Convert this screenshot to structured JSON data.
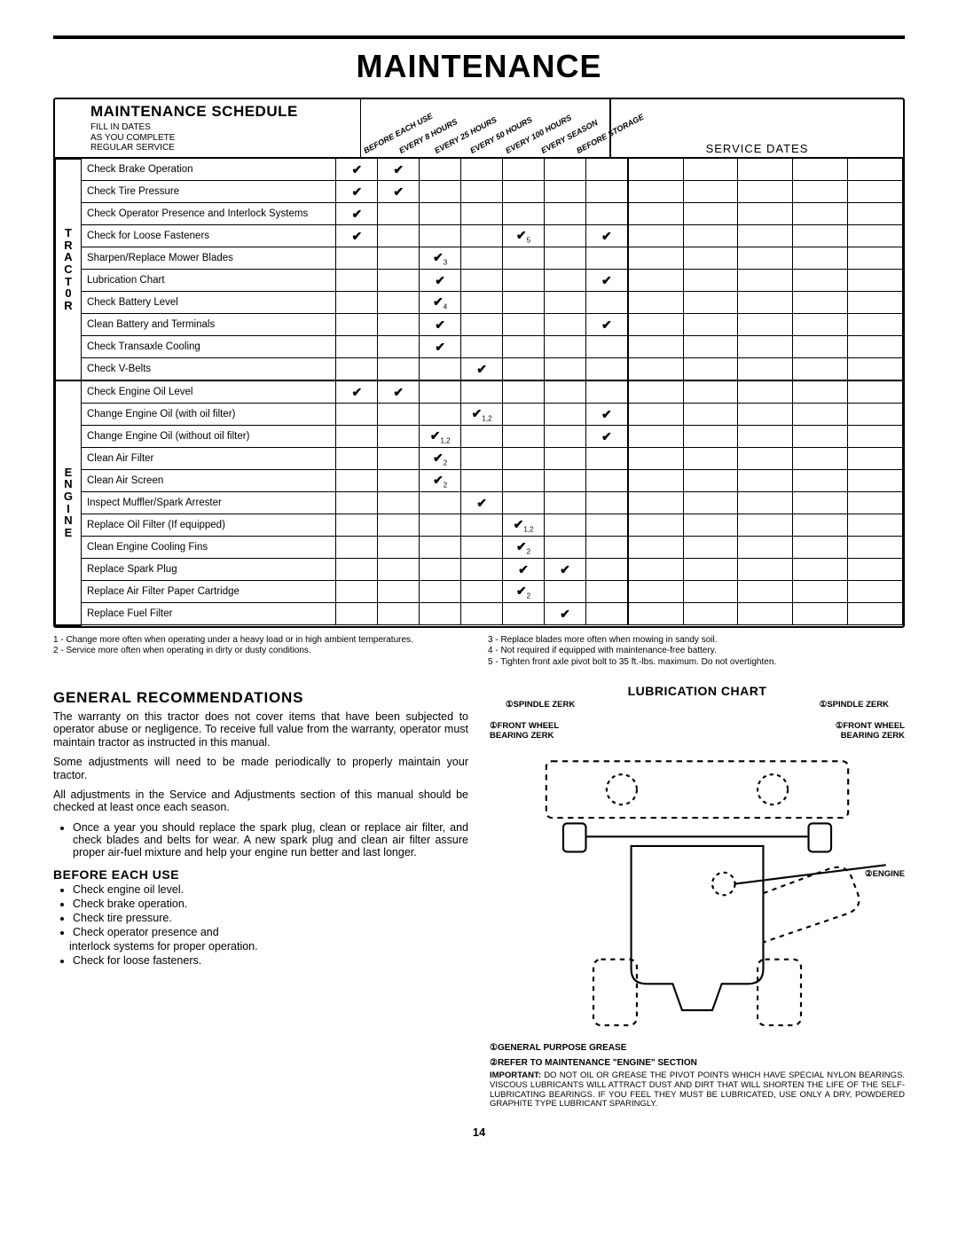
{
  "page_title": "MAINTENANCE",
  "page_number": "14",
  "schedule": {
    "title": "MAINTENANCE SCHEDULE",
    "subtitle_lines": [
      "FILL IN DATES",
      "AS YOU COMPLETE",
      "REGULAR SERVICE"
    ],
    "interval_headers": [
      "BEFORE EACH USE",
      "EVERY 8 HOURS",
      "EVERY 25 HOURS",
      "EVERY 50 HOURS",
      "EVERY 100 HOURS",
      "EVERY SEASON",
      "BEFORE STORAGE"
    ],
    "service_dates_header": "SERVICE DATES",
    "categories": [
      {
        "label": "T\nR\nA\nC\nT\n0\nR",
        "rows": [
          {
            "task": "Check Brake Operation",
            "marks": [
              "✔",
              "✔",
              "",
              "",
              "",
              "",
              ""
            ],
            "sub": [
              "",
              "",
              "",
              "",
              "",
              "",
              ""
            ]
          },
          {
            "task": "Check Tire Pressure",
            "marks": [
              "✔",
              "✔",
              "",
              "",
              "",
              "",
              ""
            ],
            "sub": [
              "",
              "",
              "",
              "",
              "",
              "",
              ""
            ]
          },
          {
            "task": "Check Operator Presence and Interlock Systems",
            "marks": [
              "✔",
              "",
              "",
              "",
              "",
              "",
              ""
            ],
            "sub": [
              "",
              "",
              "",
              "",
              "",
              "",
              ""
            ]
          },
          {
            "task": "Check for Loose Fasteners",
            "marks": [
              "✔",
              "",
              "",
              "",
              "✔",
              "",
              "✔"
            ],
            "sub": [
              "",
              "",
              "",
              "",
              "5",
              "",
              ""
            ]
          },
          {
            "task": "Sharpen/Replace Mower Blades",
            "marks": [
              "",
              "",
              "✔",
              "",
              "",
              "",
              ""
            ],
            "sub": [
              "",
              "",
              "3",
              "",
              "",
              "",
              ""
            ]
          },
          {
            "task": "Lubrication Chart",
            "marks": [
              "",
              "",
              "✔",
              "",
              "",
              "",
              "✔"
            ],
            "sub": [
              "",
              "",
              "",
              "",
              "",
              "",
              ""
            ]
          },
          {
            "task": "Check Battery Level",
            "marks": [
              "",
              "",
              "✔",
              "",
              "",
              "",
              ""
            ],
            "sub": [
              "",
              "",
              "4",
              "",
              "",
              "",
              ""
            ]
          },
          {
            "task": "Clean Battery and Terminals",
            "marks": [
              "",
              "",
              "✔",
              "",
              "",
              "",
              "✔"
            ],
            "sub": [
              "",
              "",
              "",
              "",
              "",
              "",
              ""
            ]
          },
          {
            "task": "Check Transaxle Cooling",
            "marks": [
              "",
              "",
              "✔",
              "",
              "",
              "",
              ""
            ],
            "sub": [
              "",
              "",
              "",
              "",
              "",
              "",
              ""
            ]
          },
          {
            "task": "Check V-Belts",
            "marks": [
              "",
              "",
              "",
              "✔",
              "",
              "",
              ""
            ],
            "sub": [
              "",
              "",
              "",
              "",
              "",
              "",
              ""
            ]
          }
        ]
      },
      {
        "label": "E\nN\nG\nI\nN\nE",
        "rows": [
          {
            "task": "Check Engine Oil Level",
            "marks": [
              "✔",
              "✔",
              "",
              "",
              "",
              "",
              ""
            ],
            "sub": [
              "",
              "",
              "",
              "",
              "",
              "",
              ""
            ]
          },
          {
            "task": "Change Engine Oil (with oil filter)",
            "marks": [
              "",
              "",
              "",
              "✔",
              "",
              "",
              "✔"
            ],
            "sub": [
              "",
              "",
              "",
              "1,2",
              "",
              "",
              ""
            ]
          },
          {
            "task": "Change Engine Oil (without oil filter)",
            "marks": [
              "",
              "",
              "✔",
              "",
              "",
              "",
              "✔"
            ],
            "sub": [
              "",
              "",
              "1,2",
              "",
              "",
              "",
              ""
            ]
          },
          {
            "task": "Clean Air Filter",
            "marks": [
              "",
              "",
              "✔",
              "",
              "",
              "",
              ""
            ],
            "sub": [
              "",
              "",
              "2",
              "",
              "",
              "",
              ""
            ]
          },
          {
            "task": "Clean Air Screen",
            "marks": [
              "",
              "",
              "✔",
              "",
              "",
              "",
              ""
            ],
            "sub": [
              "",
              "",
              "2",
              "",
              "",
              "",
              ""
            ]
          },
          {
            "task": "Inspect Muffler/Spark Arrester",
            "marks": [
              "",
              "",
              "",
              "✔",
              "",
              "",
              ""
            ],
            "sub": [
              "",
              "",
              "",
              "",
              "",
              "",
              ""
            ]
          },
          {
            "task": "Replace Oil Filter (If equipped)",
            "marks": [
              "",
              "",
              "",
              "",
              "✔",
              "",
              ""
            ],
            "sub": [
              "",
              "",
              "",
              "",
              "1,2",
              "",
              ""
            ]
          },
          {
            "task": "Clean Engine Cooling Fins",
            "marks": [
              "",
              "",
              "",
              "",
              "✔",
              "",
              ""
            ],
            "sub": [
              "",
              "",
              "",
              "",
              "2",
              "",
              ""
            ]
          },
          {
            "task": "Replace Spark Plug",
            "marks": [
              "",
              "",
              "",
              "",
              "✔",
              "✔",
              ""
            ],
            "sub": [
              "",
              "",
              "",
              "",
              "",
              "",
              ""
            ]
          },
          {
            "task": "Replace Air Filter Paper Cartridge",
            "marks": [
              "",
              "",
              "",
              "",
              "✔",
              "",
              ""
            ],
            "sub": [
              "",
              "",
              "",
              "",
              "2",
              "",
              ""
            ]
          },
          {
            "task": "Replace Fuel Filter",
            "marks": [
              "",
              "",
              "",
              "",
              "",
              "✔",
              ""
            ],
            "sub": [
              "",
              "",
              "",
              "",
              "",
              "",
              ""
            ]
          }
        ]
      }
    ]
  },
  "footnotes_left": "1 - Change more often when operating under a heavy load or in high ambient temperatures.\n2 - Service more often when operating in dirty or dusty conditions.",
  "footnotes_right": "3 - Replace blades more often when mowing in sandy soil.\n4 - Not required if equipped with maintenance-free battery.\n5 - Tighten front axle pivot bolt to 35 ft.-lbs. maximum. Do not overtighten.",
  "general": {
    "heading": "GENERAL RECOMMENDATIONS",
    "p1": "The warranty on this tractor does not cover items that have been subjected to operator abuse or negligence. To receive full value from the warranty, operator must maintain tractor as instructed in this manual.",
    "p2": "Some adjustments will need to be made periodically to properly maintain your tractor.",
    "p3": "All adjustments in the Service and Adjustments section of this manual should be checked at least once each season.",
    "bullet1": "Once a year you should replace the spark plug, clean or replace air filter, and check blades and belts for wear. A new spark plug and clean air filter assure proper air-fuel mixture and help your engine run better and last longer."
  },
  "before": {
    "heading": "BEFORE EACH USE",
    "items": [
      "Check engine oil level.",
      "Check brake operation.",
      "Check tire pressure.",
      "Check operator presence and",
      "interlock systems for proper operation.",
      "Check for loose fasteners."
    ]
  },
  "lub": {
    "heading": "LUBRICATION CHART",
    "labels": {
      "spindle_l": "①SPINDLE ZERK",
      "spindle_r": "①SPINDLE ZERK",
      "wheel_l": "①FRONT WHEEL BEARING ZERK",
      "wheel_r": "①FRONT WHEEL BEARING  ZERK",
      "engine": "②ENGINE"
    },
    "key1": "①GENERAL PURPOSE GREASE",
    "key2": "②REFER TO MAINTENANCE \"ENGINE\" SECTION",
    "note_label": "IMPORTANT:",
    "note": "DO NOT OIL OR GREASE THE PIVOT POINTS WHICH HAVE SPECIAL NYLON BEARINGS. VISCOUS LUBRICANTS WILL ATTRACT DUST AND DIRT THAT WILL SHORTEN THE LIFE OF THE SELF-LUBRICATING BEARINGS.  IF YOU FEEL THEY MUST BE LUBRICATED, USE ONLY A DRY, POWDERED GRAPHITE TYPE LUBRICANT SPARINGLY."
  },
  "colors": {
    "fg": "#000000",
    "bg": "#ffffff"
  }
}
